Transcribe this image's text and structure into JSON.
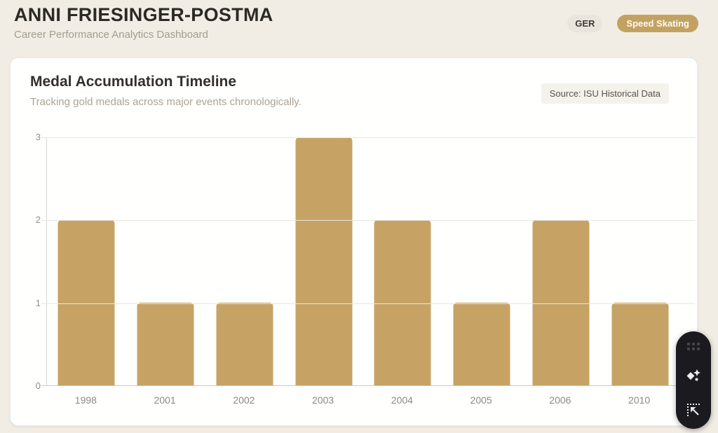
{
  "header": {
    "title": "ANNI FRIESINGER-POSTMA",
    "subtitle": "Career Performance Analytics Dashboard",
    "badges": [
      {
        "label": "GER"
      },
      {
        "label": "Speed Skating"
      }
    ]
  },
  "card": {
    "title": "Medal Accumulation Timeline",
    "subtitle": "Tracking gold medals across major events chronologically.",
    "source_label": "Source: ISU Historical Data"
  },
  "chart_data": {
    "type": "bar",
    "title": "Medal Accumulation Timeline",
    "categories": [
      "1998",
      "2001",
      "2002",
      "2003",
      "2004",
      "2005",
      "2006",
      "2010"
    ],
    "values": [
      2,
      1,
      1,
      3,
      2,
      1,
      2,
      1
    ],
    "xlabel": "",
    "ylabel": "",
    "ylim": [
      0,
      3
    ],
    "yticks": [
      0,
      1,
      2,
      3
    ],
    "grid": true,
    "legend": false,
    "bar_color": "#c6a365"
  },
  "widget": {
    "icons": [
      "drag-handle-dots",
      "ai-sparkle",
      "area-capture"
    ]
  },
  "colors": {
    "page_bg": "#f2ede4",
    "card_bg": "#fffffe",
    "accent_gold": "#c3a261",
    "bar_gold": "#c6a365",
    "text_dark": "#2c2a26",
    "text_muted": "#a39d91"
  }
}
